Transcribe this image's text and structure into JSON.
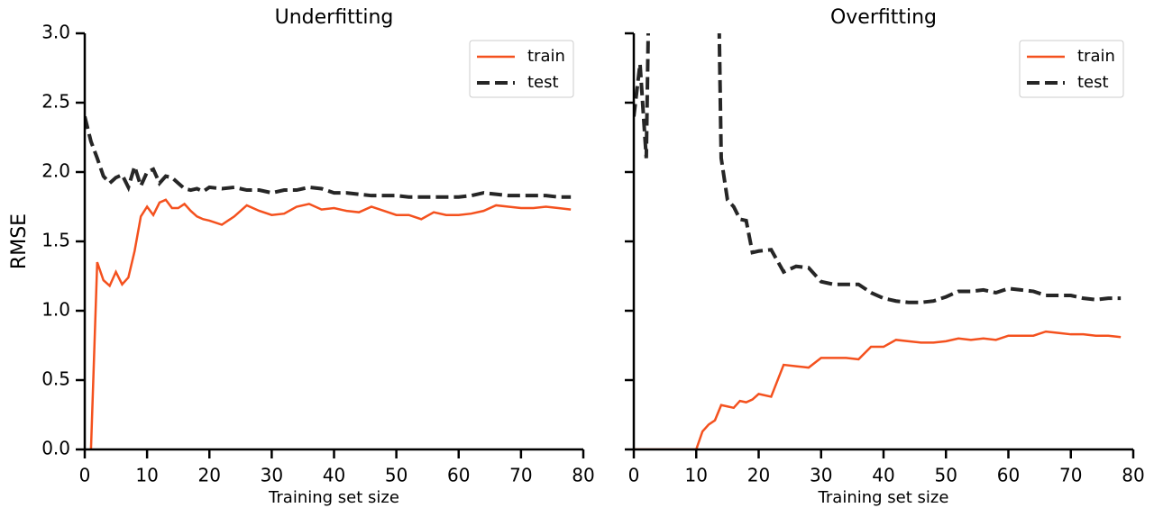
{
  "chart_data": [
    {
      "type": "line",
      "title": "Underfitting",
      "xlabel": "Training set size",
      "ylabel": "RMSE",
      "x": [
        0,
        1,
        2,
        3,
        4,
        5,
        6,
        7,
        8,
        9,
        10,
        11,
        12,
        13,
        14,
        15,
        16,
        17,
        18,
        19,
        20,
        22,
        24,
        26,
        28,
        30,
        32,
        34,
        36,
        38,
        40,
        42,
        44,
        46,
        48,
        50,
        52,
        54,
        56,
        58,
        60,
        62,
        64,
        66,
        68,
        70,
        72,
        74,
        76,
        78
      ],
      "series": [
        {
          "name": "train",
          "color": "#f4511e",
          "dashed": false,
          "values": [
            null,
            0,
            1.35,
            1.22,
            1.18,
            1.28,
            1.19,
            1.24,
            1.43,
            1.68,
            1.75,
            1.69,
            1.78,
            1.8,
            1.74,
            1.74,
            1.77,
            1.72,
            1.68,
            1.66,
            1.65,
            1.62,
            1.68,
            1.76,
            1.72,
            1.69,
            1.7,
            1.75,
            1.77,
            1.73,
            1.74,
            1.72,
            1.71,
            1.75,
            1.72,
            1.69,
            1.69,
            1.66,
            1.71,
            1.69,
            1.69,
            1.7,
            1.72,
            1.76,
            1.75,
            1.74,
            1.74,
            1.75,
            1.74,
            1.73
          ]
        },
        {
          "name": "test",
          "color": "#262626",
          "dashed": true,
          "values": [
            2.4,
            2.22,
            2.1,
            1.97,
            1.92,
            1.96,
            1.98,
            1.89,
            2.04,
            1.9,
            2.0,
            2.02,
            1.92,
            1.97,
            1.96,
            1.92,
            1.88,
            1.87,
            1.88,
            1.86,
            1.89,
            1.88,
            1.89,
            1.87,
            1.87,
            1.85,
            1.87,
            1.87,
            1.89,
            1.88,
            1.85,
            1.85,
            1.84,
            1.83,
            1.83,
            1.83,
            1.82,
            1.82,
            1.82,
            1.82,
            1.82,
            1.83,
            1.85,
            1.84,
            1.83,
            1.83,
            1.83,
            1.83,
            1.82,
            1.82
          ]
        }
      ],
      "xlim": [
        0,
        80
      ],
      "xticks": [
        0,
        10,
        20,
        30,
        40,
        50,
        60,
        70,
        80
      ],
      "ylim": [
        0,
        3
      ],
      "yticks": [
        {
          "value": 0,
          "label": "0.0"
        },
        {
          "value": 0.5,
          "label": "0.5"
        },
        {
          "value": 1,
          "label": "1.0"
        },
        {
          "value": 1.5,
          "label": "1.5"
        },
        {
          "value": 2,
          "label": "2.0"
        },
        {
          "value": 2.5,
          "label": "2.5"
        },
        {
          "value": 3,
          "label": "3.0"
        }
      ],
      "ytick_labels": true,
      "legend": "upper right"
    },
    {
      "type": "line",
      "title": "Overfitting",
      "xlabel": "Training set size",
      "x": [
        0,
        1,
        2,
        3,
        4,
        5,
        6,
        7,
        8,
        9,
        10,
        11,
        12,
        13,
        14,
        15,
        16,
        17,
        18,
        19,
        20,
        22,
        24,
        26,
        28,
        30,
        32,
        34,
        36,
        38,
        40,
        42,
        44,
        46,
        48,
        50,
        52,
        54,
        56,
        58,
        60,
        62,
        64,
        66,
        68,
        70,
        72,
        74,
        76,
        78
      ],
      "series": [
        {
          "name": "train",
          "color": "#f4511e",
          "dashed": false,
          "values": [
            0,
            0,
            0,
            0,
            0,
            0,
            0,
            0,
            0,
            0,
            0,
            0.13,
            0.18,
            0.21,
            0.32,
            0.31,
            0.3,
            0.35,
            0.34,
            0.36,
            0.4,
            0.38,
            0.61,
            0.6,
            0.59,
            0.66,
            0.66,
            0.66,
            0.65,
            0.74,
            0.74,
            0.79,
            0.78,
            0.77,
            0.77,
            0.78,
            0.8,
            0.79,
            0.8,
            0.79,
            0.82,
            0.82,
            0.82,
            0.85,
            0.84,
            0.83,
            0.83,
            0.82,
            0.82,
            0.81
          ]
        },
        {
          "name": "test",
          "color": "#262626",
          "dashed": true,
          "values": [
            2.4,
            2.78,
            2.1,
            5,
            null,
            null,
            null,
            null,
            null,
            null,
            null,
            null,
            null,
            5,
            2.1,
            1.8,
            1.75,
            1.66,
            1.65,
            1.42,
            1.43,
            1.44,
            1.28,
            1.32,
            1.31,
            1.21,
            1.19,
            1.19,
            1.19,
            1.13,
            1.09,
            1.07,
            1.06,
            1.06,
            1.07,
            1.1,
            1.14,
            1.14,
            1.15,
            1.13,
            1.16,
            1.15,
            1.14,
            1.11,
            1.11,
            1.11,
            1.09,
            1.08,
            1.09,
            1.09
          ]
        }
      ],
      "xlim": [
        0,
        80
      ],
      "xticks": [
        0,
        10,
        20,
        30,
        40,
        50,
        60,
        70,
        80
      ],
      "ylim": [
        0,
        3
      ],
      "yticks": [
        0,
        0.5,
        1,
        1.5,
        2,
        2.5,
        3
      ],
      "ytick_labels": false,
      "legend": "upper right"
    }
  ]
}
